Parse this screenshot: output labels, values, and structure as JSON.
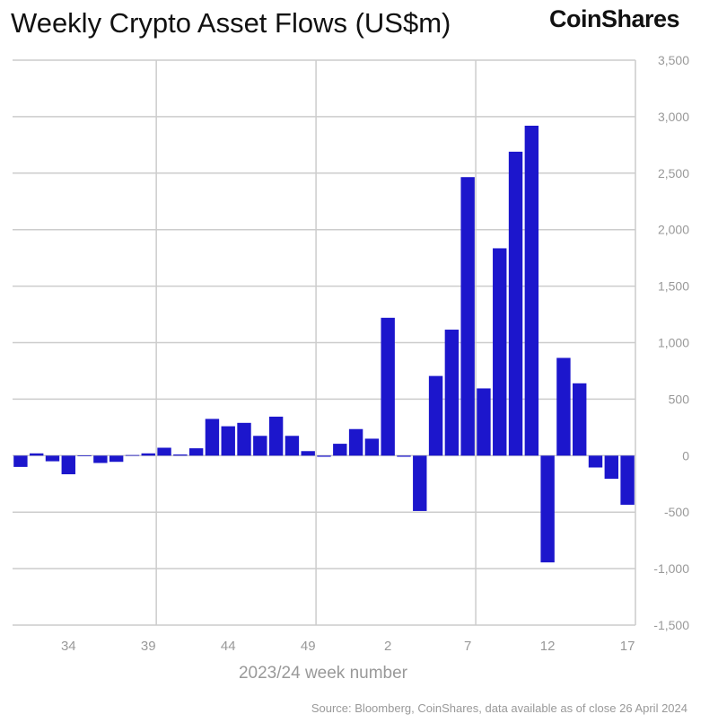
{
  "title": "Weekly Crypto Asset Flows (US$m)",
  "logo": "CoinShares",
  "source": "Source: Bloomberg, CoinShares, data available as of close 26 April 2024",
  "colors": {
    "bar": "#1c16cc",
    "grid": "#cccccc",
    "tick_text": "#999999"
  },
  "chart_data": {
    "type": "bar",
    "title": "Weekly Crypto Asset Flows (US$m)",
    "xlabel": "2023/24 week number",
    "ylabel": "",
    "ylim": [
      -1500,
      3500
    ],
    "yticks": [
      -1500,
      -1000,
      -500,
      0,
      500,
      1000,
      1500,
      2000,
      2500,
      3000,
      3500
    ],
    "ytick_labels": [
      "-1,500",
      "-1,000",
      "-500",
      "0",
      "500",
      "1,000",
      "1,500",
      "2,000",
      "2,500",
      "3,000",
      "3,500"
    ],
    "y_axis_side": "right",
    "grid": true,
    "categories": [
      "31",
      "32",
      "33",
      "34",
      "35",
      "36",
      "37",
      "38",
      "39",
      "40",
      "41",
      "42",
      "43",
      "44",
      "45",
      "46",
      "47",
      "48",
      "49",
      "50",
      "51",
      "52",
      "1",
      "2",
      "3",
      "4",
      "5",
      "6",
      "7",
      "8",
      "9",
      "10",
      "11",
      "12",
      "13",
      "14",
      "15",
      "16",
      "17"
    ],
    "xtick_labels": [
      "34",
      "39",
      "44",
      "49",
      "2",
      "7",
      "12",
      "17"
    ],
    "values": [
      -100,
      20,
      -50,
      -165,
      2,
      -65,
      -55,
      5,
      20,
      70,
      10,
      65,
      325,
      260,
      290,
      175,
      345,
      175,
      40,
      -10,
      105,
      235,
      150,
      1220,
      -10,
      -490,
      705,
      1115,
      2465,
      595,
      1835,
      2690,
      2920,
      -945,
      865,
      640,
      -105,
      -205,
      -435
    ]
  }
}
